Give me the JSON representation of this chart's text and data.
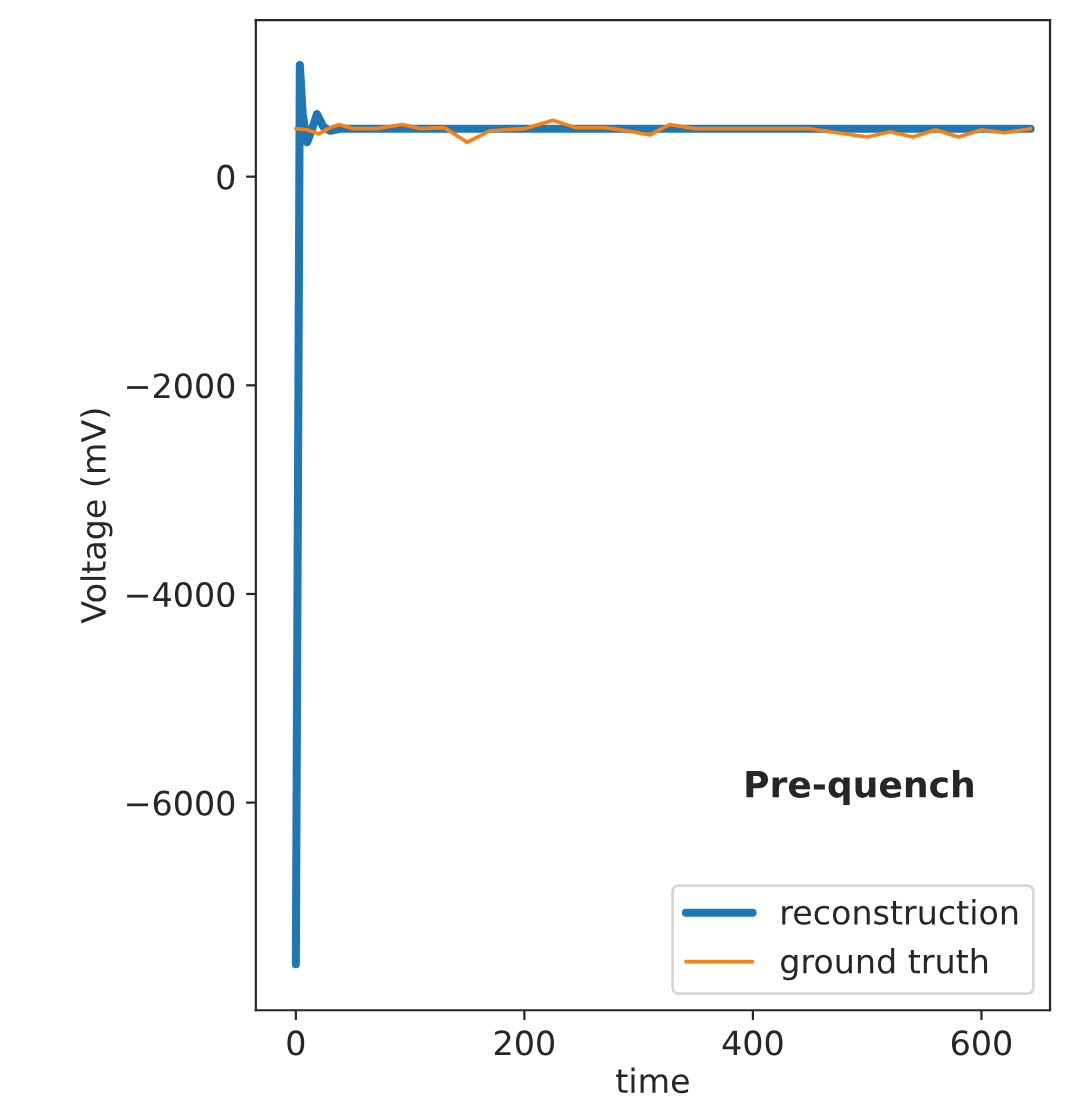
{
  "chart_data": {
    "type": "line",
    "xlabel": "time",
    "ylabel": "Voltage (mV)",
    "annotations": [
      "Pre-quench"
    ],
    "xlim": [
      -35,
      660
    ],
    "xticks": [
      0,
      200,
      400,
      600
    ],
    "ylim": [
      -7990,
      1500
    ],
    "yticks": [
      {
        "value": 0,
        "label": "0"
      },
      {
        "value": -2000,
        "label": "−2000"
      },
      {
        "value": -4000,
        "label": "−4000"
      },
      {
        "value": -6000,
        "label": "−6000"
      }
    ],
    "legend": "bottom right",
    "grid": false,
    "series": [
      {
        "name": "reconstruction",
        "color": "#1f77b4",
        "x": [
          0,
          3.5,
          6,
          9.8,
          14,
          18.5,
          24,
          30,
          40,
          100,
          150,
          200,
          300,
          400,
          500,
          600,
          643
        ],
        "values": [
          -7550,
          1070,
          600,
          330,
          450,
          600,
          480,
          440,
          460,
          460,
          460,
          460,
          460,
          460,
          460,
          460,
          460
        ]
      },
      {
        "name": "ground truth",
        "color": "#ff7f0e",
        "x": [
          0,
          10,
          20,
          30,
          38,
          50,
          70,
          93,
          110,
          130,
          150,
          170,
          200,
          225,
          245,
          270,
          290,
          310,
          327,
          350,
          400,
          450,
          500,
          520,
          540,
          560,
          580,
          600,
          620,
          643
        ],
        "values": [
          460,
          450,
          410,
          470,
          500,
          460,
          460,
          500,
          460,
          470,
          330,
          440,
          460,
          540,
          470,
          470,
          440,
          400,
          500,
          460,
          460,
          460,
          380,
          430,
          380,
          450,
          380,
          450,
          420,
          460
        ]
      }
    ]
  }
}
